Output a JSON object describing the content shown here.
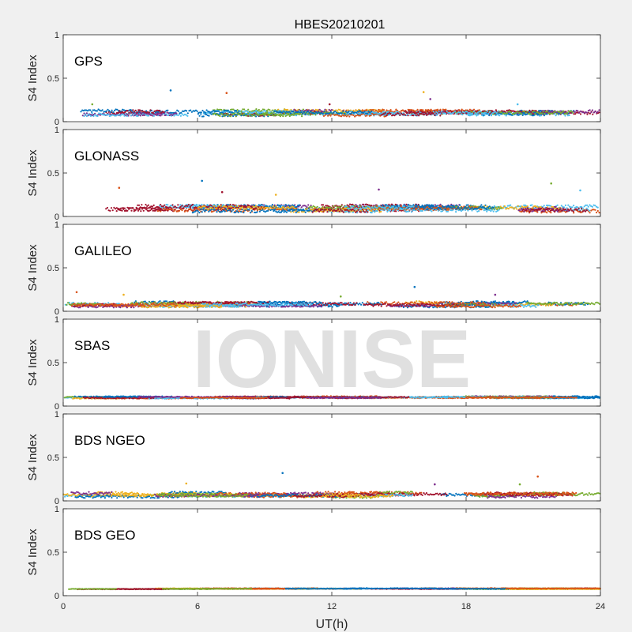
{
  "watermark": "IONISE",
  "chart_data": {
    "type": "scatter",
    "title": "HBES20210201",
    "xlabel": "UT(h)",
    "xlim": [
      0,
      24
    ],
    "xticks": [
      0,
      6,
      12,
      18,
      24
    ],
    "grid": false,
    "colors": [
      "#0072BD",
      "#D95319",
      "#EDB120",
      "#7E2F8E",
      "#77AC30",
      "#4DBEEE",
      "#A2142F"
    ],
    "panels": [
      {
        "label": "GPS",
        "ylabel": "S4 Index",
        "ylim": [
          0,
          1
        ],
        "yticks": [
          0,
          0.5,
          1
        ],
        "baseline": 0.1,
        "spread": 0.035,
        "outliers": [
          [
            4.8,
            0.36
          ],
          [
            7.3,
            0.33
          ],
          [
            16.1,
            0.34
          ],
          [
            16.4,
            0.26
          ],
          [
            1.3,
            0.2
          ],
          [
            20.3,
            0.2
          ],
          [
            11.9,
            0.2
          ]
        ]
      },
      {
        "label": "GLONASS",
        "ylabel": "S4 Index",
        "ylim": [
          0,
          1
        ],
        "yticks": [
          0,
          0.5,
          1
        ],
        "baseline": 0.09,
        "spread": 0.04,
        "outliers": [
          [
            6.2,
            0.41
          ],
          [
            2.5,
            0.33
          ],
          [
            9.5,
            0.25
          ],
          [
            14.1,
            0.31
          ],
          [
            21.8,
            0.38
          ],
          [
            23.1,
            0.3
          ],
          [
            7.1,
            0.28
          ]
        ]
      },
      {
        "label": "GALILEO",
        "ylabel": "S4 Index",
        "ylim": [
          0,
          1
        ],
        "yticks": [
          0,
          0.5,
          1
        ],
        "baseline": 0.08,
        "spread": 0.03,
        "outliers": [
          [
            15.7,
            0.28
          ],
          [
            0.6,
            0.22
          ],
          [
            2.7,
            0.19
          ],
          [
            19.3,
            0.19
          ],
          [
            12.4,
            0.17
          ]
        ]
      },
      {
        "label": "SBAS",
        "ylabel": "S4 Index",
        "ylim": [
          0,
          1
        ],
        "yticks": [
          0,
          0.5,
          1
        ],
        "baseline": 0.1,
        "spread": 0.012,
        "outliers": []
      },
      {
        "label": "BDS NGEO",
        "ylabel": "S4 Index",
        "ylim": [
          0,
          1
        ],
        "yticks": [
          0,
          0.5,
          1
        ],
        "baseline": 0.07,
        "spread": 0.03,
        "outliers": [
          [
            9.8,
            0.32
          ],
          [
            21.2,
            0.28
          ],
          [
            5.5,
            0.2
          ],
          [
            16.6,
            0.19
          ],
          [
            20.4,
            0.19
          ]
        ]
      },
      {
        "label": "BDS GEO",
        "ylabel": "S4 Index",
        "ylim": [
          0,
          1
        ],
        "yticks": [
          0,
          0.5,
          1
        ],
        "baseline": 0.08,
        "spread": 0.006,
        "outliers": []
      }
    ]
  }
}
